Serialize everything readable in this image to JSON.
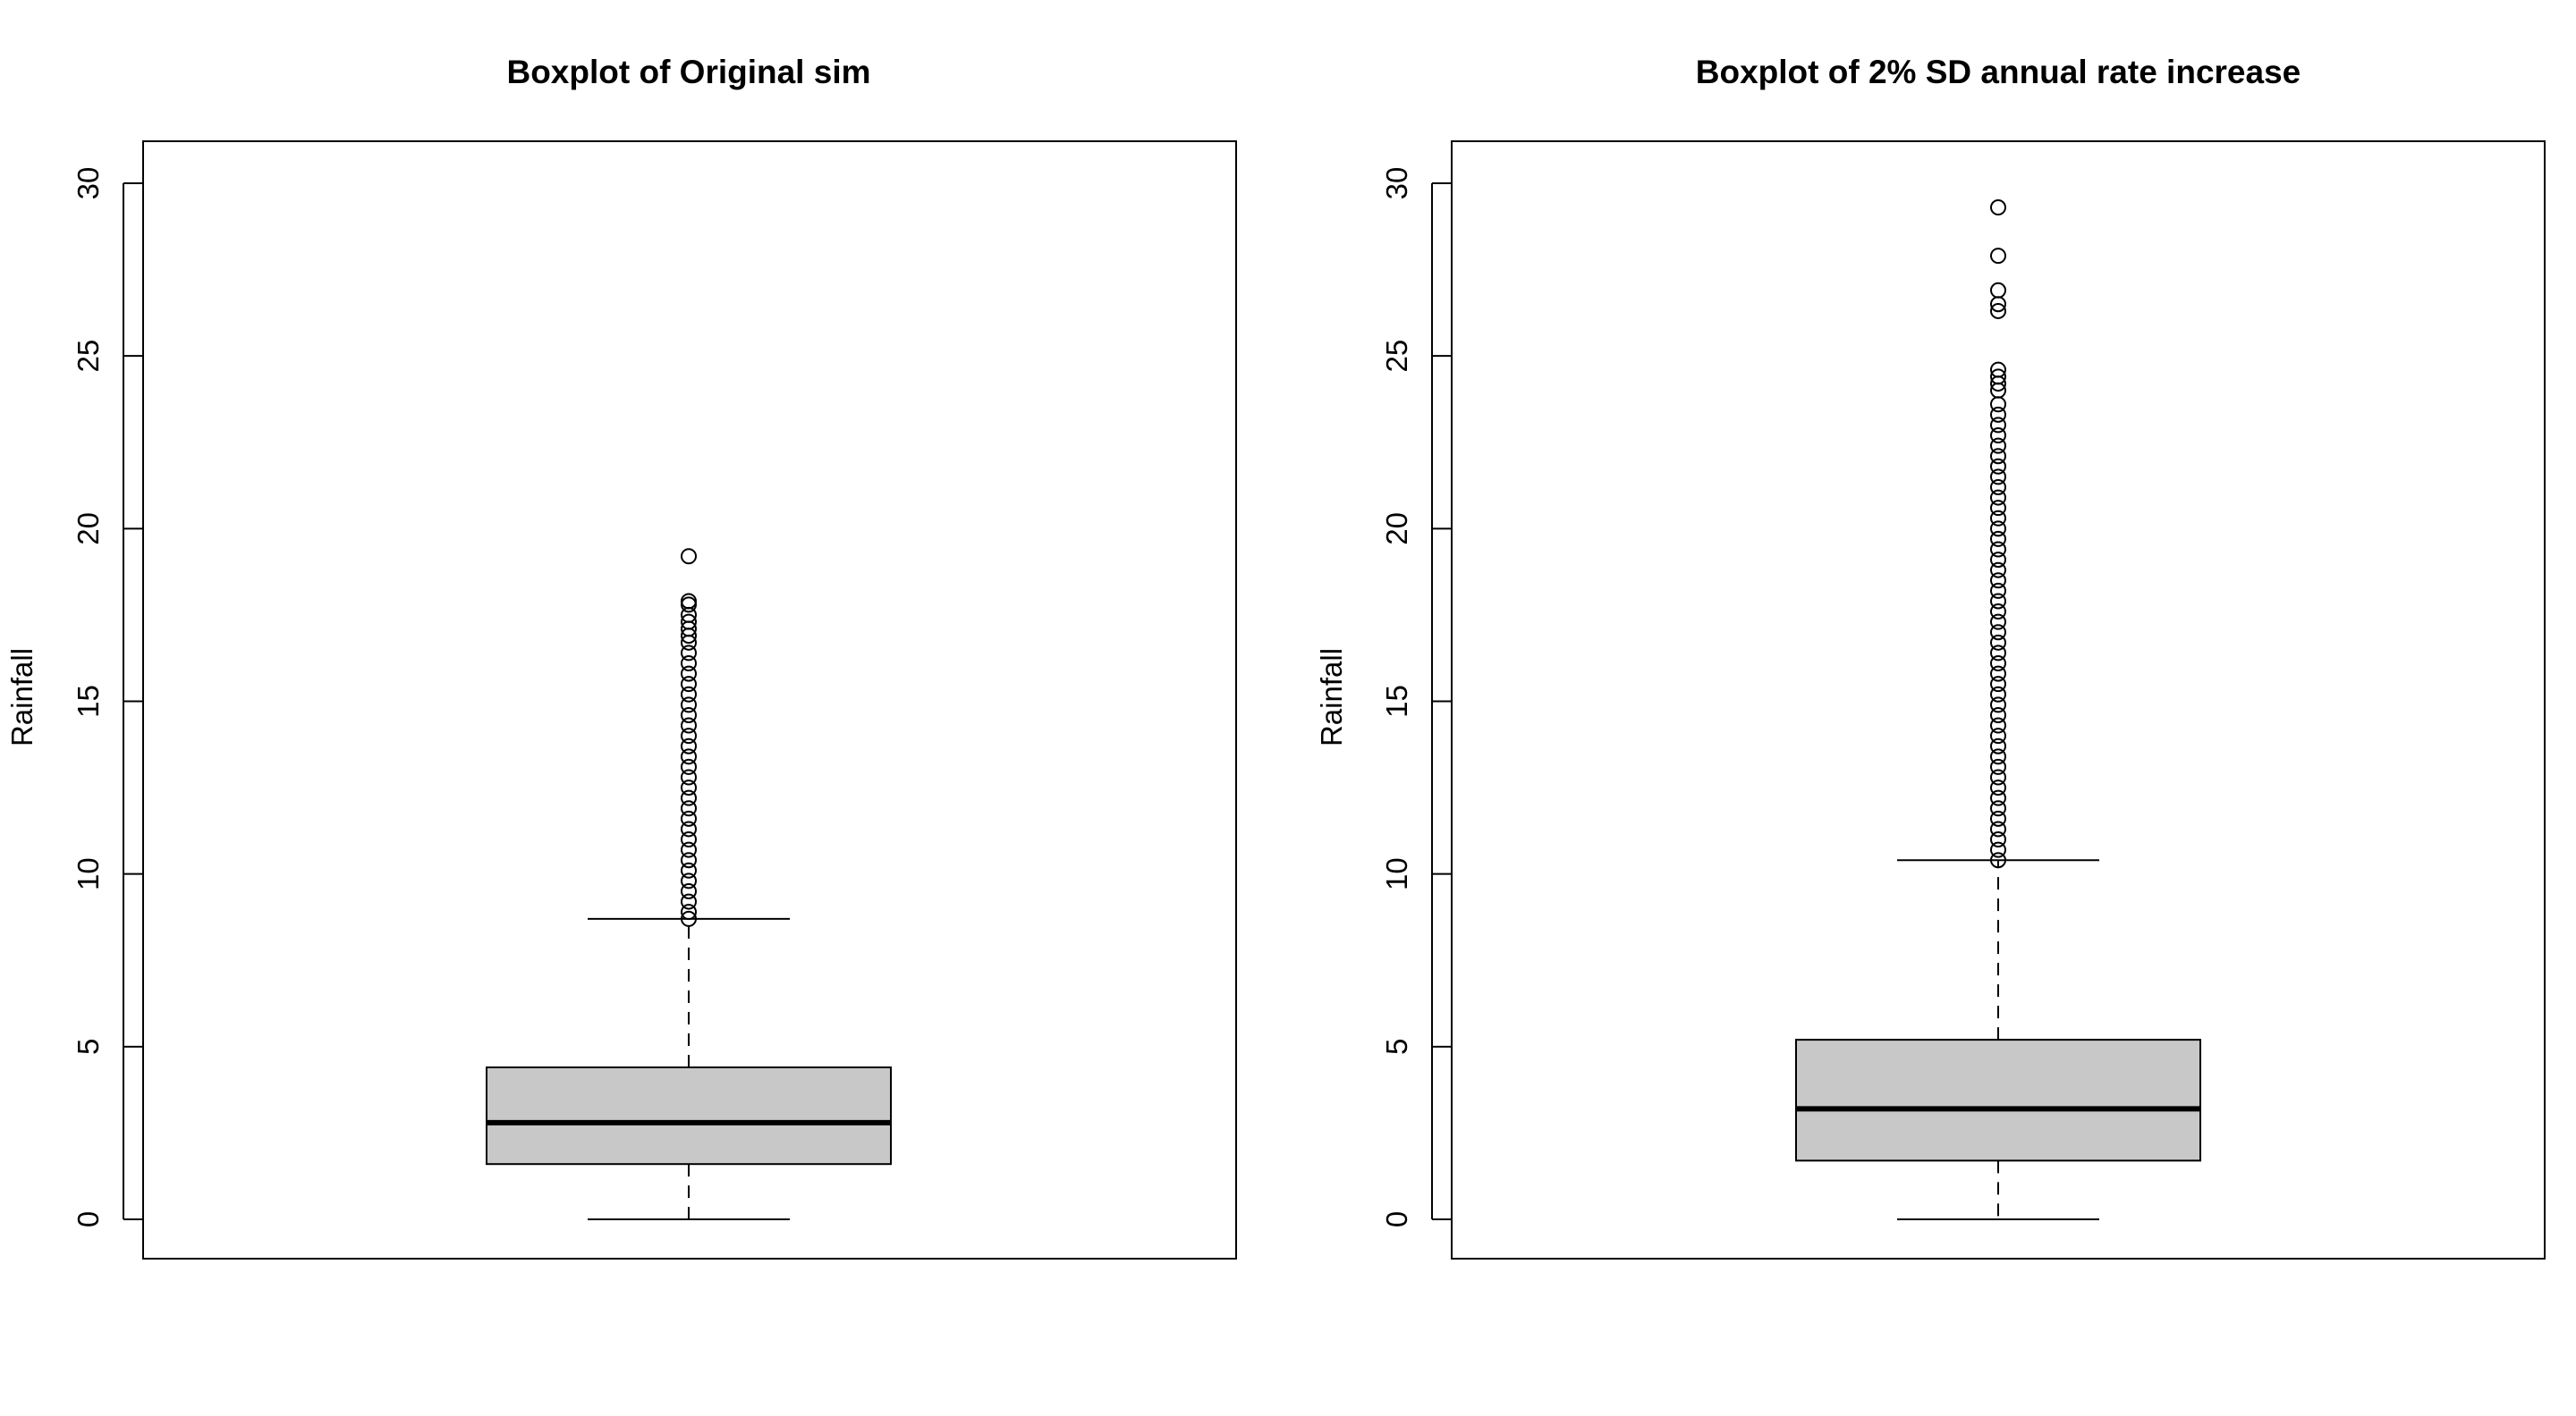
{
  "chart_data": [
    {
      "type": "boxplot",
      "title": "Boxplot of Original sim",
      "xlabel": "",
      "ylabel": "Rainfall",
      "ylim": [
        0,
        30
      ],
      "yticks": [
        0,
        5,
        10,
        15,
        20,
        25,
        30
      ],
      "grid": false,
      "box_color": "#c8c8c8",
      "stats": {
        "min": 0,
        "q1": 1.6,
        "median": 2.8,
        "q3": 4.4,
        "whisker_high": 8.7
      },
      "outliers": [
        8.7,
        8.9,
        9.2,
        9.5,
        9.8,
        10.1,
        10.4,
        10.7,
        11.0,
        11.3,
        11.6,
        11.9,
        12.2,
        12.5,
        12.8,
        13.1,
        13.4,
        13.7,
        14.0,
        14.3,
        14.6,
        14.9,
        15.2,
        15.5,
        15.8,
        16.1,
        16.4,
        16.7,
        16.9,
        17.1,
        17.3,
        17.5,
        17.8,
        17.9,
        19.2
      ]
    },
    {
      "type": "boxplot",
      "title": "Boxplot of 2% SD annual rate increase",
      "xlabel": "",
      "ylabel": "Rainfall",
      "ylim": [
        0,
        30
      ],
      "yticks": [
        0,
        5,
        10,
        15,
        20,
        25,
        30
      ],
      "grid": false,
      "box_color": "#c8c8c8",
      "stats": {
        "min": 0,
        "q1": 1.7,
        "median": 3.2,
        "q3": 5.2,
        "whisker_high": 10.4
      },
      "outliers": [
        10.4,
        10.7,
        11.0,
        11.3,
        11.6,
        11.9,
        12.2,
        12.5,
        12.8,
        13.1,
        13.4,
        13.7,
        14.0,
        14.3,
        14.6,
        14.9,
        15.2,
        15.5,
        15.8,
        16.1,
        16.4,
        16.7,
        17.0,
        17.3,
        17.6,
        17.9,
        18.2,
        18.5,
        18.8,
        19.1,
        19.4,
        19.7,
        20.0,
        20.3,
        20.6,
        20.9,
        21.2,
        21.5,
        21.8,
        22.1,
        22.4,
        22.7,
        23.0,
        23.3,
        23.6,
        24.0,
        24.2,
        24.4,
        24.6,
        26.3,
        26.5,
        26.9,
        27.9,
        29.3
      ]
    }
  ]
}
